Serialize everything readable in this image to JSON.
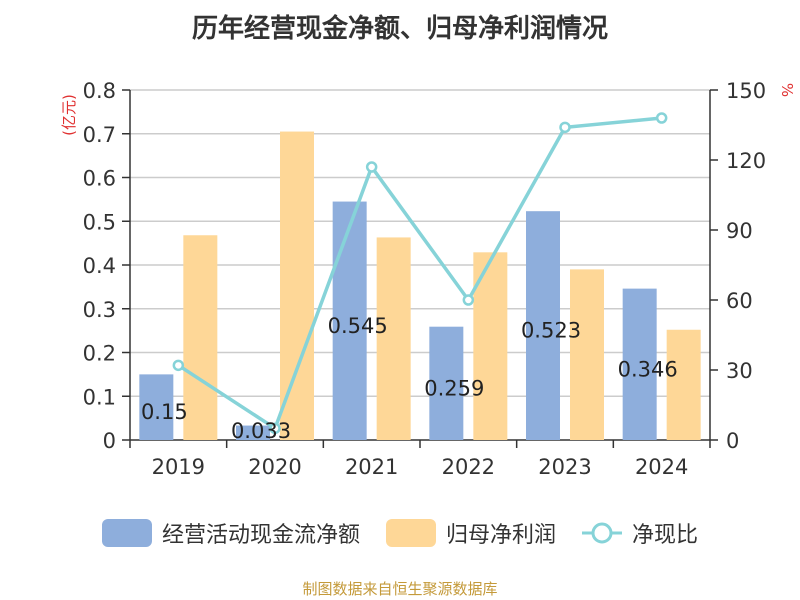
{
  "title": "历年经营现金净额、归母净利润情况",
  "source": "制图数据来自恒生聚源数据库",
  "chart_data": {
    "type": "bar",
    "categories": [
      "2019",
      "2020",
      "2021",
      "2022",
      "2023",
      "2024"
    ],
    "series": [
      {
        "name": "经营活动现金流净额",
        "type": "bar",
        "axis": "left",
        "color": "#8eaedc",
        "values": [
          0.15,
          0.033,
          0.545,
          0.259,
          0.523,
          0.346
        ],
        "labels": [
          "0.15",
          "0.033",
          "0.545",
          "0.259",
          "0.523",
          "0.346"
        ]
      },
      {
        "name": "归母净利润",
        "type": "bar",
        "axis": "left",
        "color": "#fed797",
        "values": [
          0.468,
          0.705,
          0.463,
          0.429,
          0.39,
          0.252
        ]
      },
      {
        "name": "净现比",
        "type": "line",
        "axis": "right",
        "color": "#86d3d8",
        "values": [
          32,
          5,
          117,
          60,
          134,
          138
        ]
      }
    ],
    "left_axis": {
      "unit_label": "(亿元)",
      "ylim": [
        0,
        0.8
      ],
      "ticks": [
        "0",
        "0.1",
        "0.2",
        "0.3",
        "0.4",
        "0.5",
        "0.6",
        "0.7",
        "0.8"
      ]
    },
    "right_axis": {
      "unit_label": "%",
      "ylim": [
        0,
        150
      ],
      "ticks": [
        "0",
        "30",
        "60",
        "90",
        "120",
        "150"
      ]
    },
    "grid": true,
    "legend": "bottom",
    "unit_color": "#e03030"
  }
}
